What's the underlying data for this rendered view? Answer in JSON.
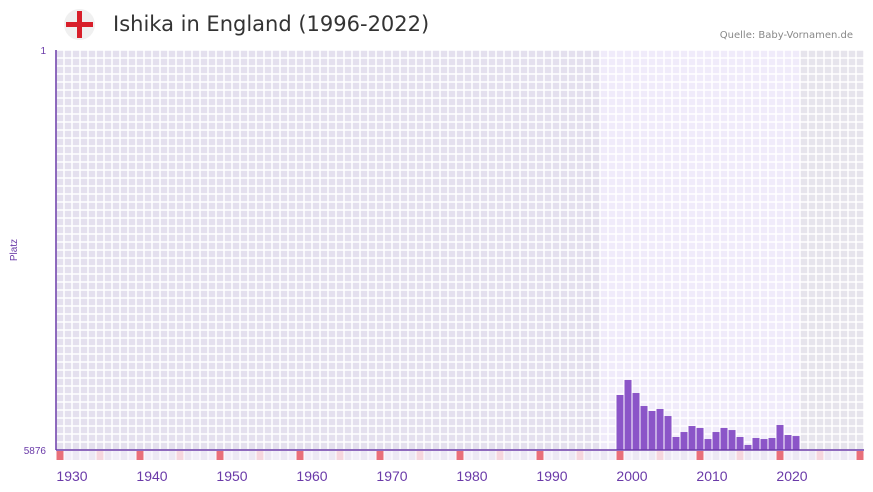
{
  "header": {
    "title": "Ishika in England (1996-2022)",
    "source": "Quelle: Baby-Vornamen.de",
    "flag_icon": "england-flag-icon"
  },
  "chart_data": {
    "type": "bar",
    "title": "Ishika in England (1996-2022)",
    "ylabel": "Platz",
    "ylim": [
      1,
      5876
    ],
    "y_inverted": true,
    "y_ticks": [
      "1",
      "5876"
    ],
    "x_ticks": [
      "1930",
      "1940",
      "1950",
      "1960",
      "1970",
      "1980",
      "1990",
      "2000",
      "2010",
      "2020"
    ],
    "xlim": [
      1930,
      2030
    ],
    "x": [
      2000,
      2001,
      2002,
      2003,
      2004,
      2005,
      2006,
      2007,
      2008,
      2009,
      2010,
      2011,
      2012,
      2013,
      2014,
      2015,
      2016,
      2017,
      2018,
      2019,
      2020,
      2021,
      2022
    ],
    "values": [
      5068,
      4848,
      5039,
      5230,
      5303,
      5274,
      5377,
      5685,
      5612,
      5524,
      5553,
      5715,
      5612,
      5553,
      5583,
      5685,
      5802,
      5700,
      5715,
      5700,
      5509,
      5656,
      5671
    ],
    "colors": {
      "bar": "#8b55c8",
      "axis": "#6a3aa8",
      "bg_dark": "#e4e0ee",
      "bg_light": "#f0ebfa",
      "bg_future": "#e6e4ec",
      "marker": "#e8707a",
      "marker_light": "#f5d6de"
    }
  }
}
